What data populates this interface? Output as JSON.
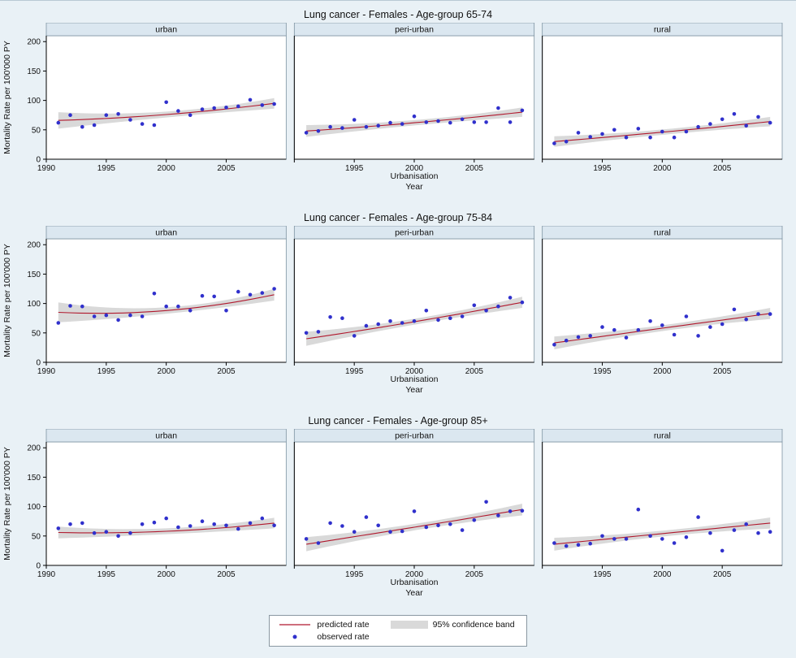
{
  "colors": {
    "background": "#e9f1f6",
    "strip": "#dbe7f0",
    "panel": "#ffffff",
    "dot": "#3030cc",
    "line": "#b0182d",
    "band": "#d9d9d9",
    "frame": "#7d93a2",
    "axis": "#000000"
  },
  "legend": {
    "predicted": "predicted rate",
    "observed": "observed rate",
    "band": "95% confidence band"
  },
  "chart_data": [
    {
      "type": "scatter",
      "title": "Lung cancer - Females - Age-group 65-74",
      "ylabel": "Mortality Rate per 100'000 PY",
      "xlabel": "Year",
      "facet_title": "Urbanisation",
      "ylim": [
        0,
        200
      ],
      "yticks": [
        0,
        50,
        100,
        150,
        200
      ],
      "xlim": [
        1990,
        2010
      ],
      "xticks": [
        1990,
        1995,
        2000,
        2005
      ],
      "years": [
        1991,
        1992,
        1993,
        1994,
        1995,
        1996,
        1997,
        1998,
        1999,
        2000,
        2001,
        2002,
        2003,
        2004,
        2005,
        2006,
        2007,
        2008,
        2009
      ],
      "panels": [
        {
          "label": "urban",
          "observed": [
            62,
            75,
            55,
            58,
            75,
            77,
            67,
            60,
            58,
            97,
            82,
            75,
            85,
            87,
            88,
            90,
            101,
            92,
            94
          ],
          "predicted": {
            "start": 66,
            "mid": 76,
            "end": 95
          },
          "band": {
            "start": 14,
            "mid": 5,
            "end": 9
          }
        },
        {
          "label": "peri-urban",
          "observed": [
            45,
            48,
            55,
            53,
            67,
            55,
            57,
            62,
            60,
            73,
            63,
            65,
            62,
            68,
            63,
            63,
            87,
            63,
            83
          ],
          "predicted": {
            "start": 48,
            "mid": 62,
            "end": 80
          },
          "band": {
            "start": 10,
            "mid": 4.5,
            "end": 8
          }
        },
        {
          "label": "rural",
          "observed": [
            27,
            30,
            45,
            38,
            43,
            50,
            37,
            52,
            37,
            47,
            37,
            47,
            55,
            60,
            68,
            77,
            57,
            72,
            62
          ],
          "predicted": {
            "start": 30,
            "mid": 46,
            "end": 64
          },
          "band": {
            "start": 9,
            "mid": 4.5,
            "end": 8
          }
        }
      ]
    },
    {
      "type": "scatter",
      "title": "Lung cancer - Females - Age-group 75-84",
      "ylabel": "Mortality Rate per 100'000 PY",
      "xlabel": "Year",
      "facet_title": "Urbanisation",
      "ylim": [
        0,
        200
      ],
      "yticks": [
        0,
        50,
        100,
        150,
        200
      ],
      "xlim": [
        1990,
        2010
      ],
      "xticks": [
        1990,
        1995,
        2000,
        2005
      ],
      "years": [
        1991,
        1992,
        1993,
        1994,
        1995,
        1996,
        1997,
        1998,
        1999,
        2000,
        2001,
        2002,
        2003,
        2004,
        2005,
        2006,
        2007,
        2008,
        2009
      ],
      "panels": [
        {
          "label": "urban",
          "observed": [
            67,
            96,
            95,
            78,
            80,
            72,
            80,
            78,
            117,
            95,
            95,
            88,
            113,
            112,
            88,
            120,
            115,
            118,
            125
          ],
          "predicted": {
            "start": 85,
            "mid": 88,
            "end": 115
          },
          "band": {
            "start": 17,
            "mid": 5.5,
            "end": 10
          }
        },
        {
          "label": "peri-urban",
          "observed": [
            50,
            52,
            77,
            75,
            45,
            62,
            65,
            70,
            67,
            70,
            88,
            72,
            75,
            78,
            97,
            88,
            95,
            110,
            102
          ],
          "predicted": {
            "start": 40,
            "mid": 69,
            "end": 102
          },
          "band": {
            "start": 12,
            "mid": 5,
            "end": 9.5
          }
        },
        {
          "label": "rural",
          "observed": [
            30,
            37,
            43,
            45,
            60,
            55,
            42,
            55,
            70,
            63,
            47,
            78,
            45,
            60,
            65,
            90,
            73,
            82,
            82
          ],
          "predicted": {
            "start": 33,
            "mid": 58,
            "end": 83
          },
          "band": {
            "start": 11,
            "mid": 5,
            "end": 9.5
          }
        }
      ]
    },
    {
      "type": "scatter",
      "title": "Lung cancer - Females - Age-group 85+",
      "ylabel": "Mortality Rate per 100'000 PY",
      "xlabel": "Year",
      "facet_title": "Urbanisation",
      "ylim": [
        0,
        200
      ],
      "yticks": [
        0,
        50,
        100,
        150,
        200
      ],
      "xlim": [
        1990,
        2010
      ],
      "xticks": [
        1990,
        1995,
        2000,
        2005
      ],
      "years": [
        1991,
        1992,
        1993,
        1994,
        1995,
        1996,
        1997,
        1998,
        1999,
        2000,
        2001,
        2002,
        2003,
        2004,
        2005,
        2006,
        2007,
        2008,
        2009
      ],
      "panels": [
        {
          "label": "urban",
          "observed": [
            63,
            70,
            72,
            55,
            57,
            50,
            55,
            70,
            73,
            80,
            65,
            67,
            75,
            70,
            68,
            62,
            72,
            80,
            68
          ],
          "predicted": {
            "start": 56,
            "mid": 58,
            "end": 72
          },
          "band": {
            "start": 10,
            "mid": 5,
            "end": 9
          }
        },
        {
          "label": "peri-urban",
          "observed": [
            45,
            38,
            72,
            67,
            57,
            82,
            68,
            57,
            58,
            92,
            65,
            68,
            70,
            60,
            77,
            108,
            85,
            92,
            93
          ],
          "predicted": {
            "start": 36,
            "mid": 65,
            "end": 95
          },
          "band": {
            "start": 12,
            "mid": 5.5,
            "end": 10
          }
        },
        {
          "label": "rural",
          "observed": [
            38,
            33,
            35,
            37,
            50,
            45,
            45,
            95,
            50,
            45,
            38,
            48,
            82,
            55,
            25,
            60,
            70,
            55,
            57
          ],
          "predicted": {
            "start": 36,
            "mid": 54,
            "end": 72
          },
          "band": {
            "start": 11,
            "mid": 5,
            "end": 9.5
          }
        }
      ]
    }
  ]
}
